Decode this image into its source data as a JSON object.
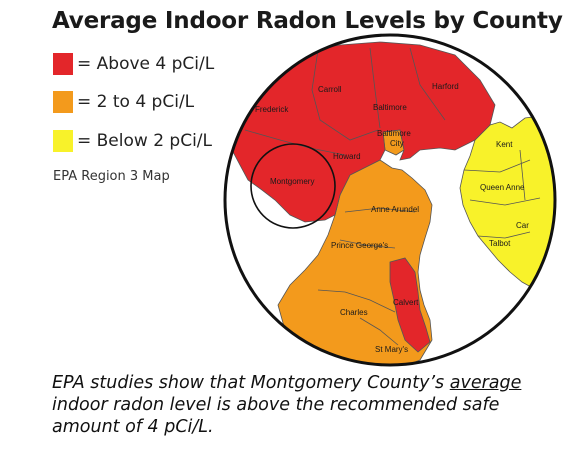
{
  "title": "Average Indoor Radon Levels by County",
  "legend": [
    {
      "color": "#e3262a",
      "label": "= Above 4 pCi/L"
    },
    {
      "color": "#f39a1c",
      "label": "= 2 to 4 pCi/L"
    },
    {
      "color": "#f8f22a",
      "label": "= Below 2 pCi/L"
    }
  ],
  "region_note": "EPA Region 3 Map",
  "map": {
    "counties": {
      "carroll": "Carroll",
      "harford": "Harford",
      "frederick": "Frederick",
      "baltimore": "Baltimore",
      "baltimore_city": "Baltimore City",
      "howard": "Howard",
      "montgomery": "Montgomery",
      "anne_arundel": "Anne Arundel",
      "kent": "Kent",
      "queen_anne": "Queen Anne",
      "car": "Car",
      "talbot": "Talbot",
      "prince_georges": "Prince George's",
      "calvert": "Calvert",
      "charles": "Charles",
      "st_marys": "St Mary's"
    }
  },
  "caption": {
    "part1": "EPA studies show that Montgomery County’s ",
    "underlined": "average",
    "part2": " indoor radon level is above the recommended safe amount of 4 pCi/L."
  }
}
